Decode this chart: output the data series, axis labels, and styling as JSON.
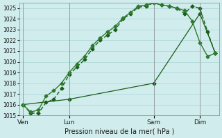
{
  "title": "",
  "xlabel": "Pression niveau de la mer( hPa )",
  "ylim": [
    1015,
    1025.5
  ],
  "bg_color": "#d0ecec",
  "grid_color": "#b0d8d8",
  "line_color": "#1a5c1a",
  "line_color2": "#2d7a2d",
  "yticks": [
    1015,
    1016,
    1017,
    1018,
    1019,
    1020,
    1021,
    1022,
    1023,
    1024,
    1025
  ],
  "day_labels": [
    "Ven",
    "Lun",
    "Sam",
    "Dim"
  ],
  "day_positions": [
    0,
    6,
    17,
    23
  ],
  "series1_x": [
    0,
    1,
    2,
    3,
    4,
    5,
    6,
    7,
    8,
    9,
    10,
    11,
    12,
    13,
    14,
    15,
    16,
    17,
    18,
    19,
    20,
    21,
    22,
    23,
    24,
    25
  ],
  "series1_y": [
    1016.0,
    1015.2,
    1015.2,
    1016.2,
    1016.5,
    1017.5,
    1018.8,
    1019.5,
    1020.2,
    1021.2,
    1022.0,
    1022.5,
    1023.0,
    1024.0,
    1024.5,
    1025.1,
    1025.2,
    1025.5,
    1025.3,
    1025.2,
    1025.0,
    1024.5,
    1025.2,
    1025.0,
    1022.8,
    1020.8
  ],
  "series2_x": [
    0,
    1,
    2,
    3,
    4,
    5,
    6,
    7,
    8,
    9,
    10,
    11,
    12,
    13,
    14,
    15,
    16,
    17,
    18,
    19,
    20,
    21,
    22,
    23,
    24,
    25
  ],
  "series2_y": [
    1016.0,
    1015.3,
    1015.5,
    1016.8,
    1017.3,
    1018.0,
    1019.0,
    1019.8,
    1020.5,
    1021.5,
    1022.2,
    1022.8,
    1023.3,
    1024.1,
    1024.6,
    1025.2,
    1025.3,
    1025.5,
    1025.3,
    1025.2,
    1025.0,
    1024.8,
    1023.8,
    1021.8,
    1020.5,
    1020.8
  ],
  "series3_x": [
    0,
    6,
    17,
    23,
    25
  ],
  "series3_y": [
    1016.0,
    1016.5,
    1018.0,
    1024.5,
    1020.8
  ]
}
